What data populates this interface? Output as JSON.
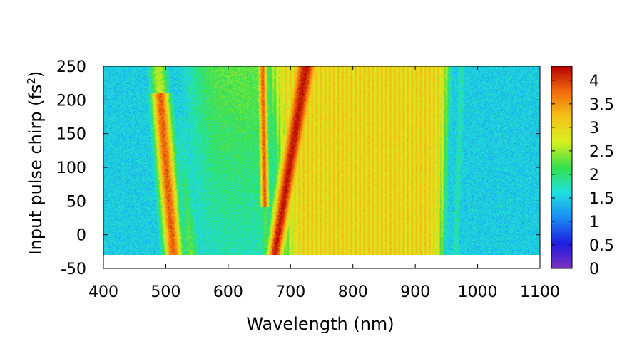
{
  "chart_data": {
    "type": "heatmap",
    "title": "",
    "xlabel": "Wavelength (nm)",
    "ylabel_main": "Input pulse chirp (fs",
    "ylabel_sup": "2",
    "ylabel_end": ")",
    "xlim": [
      400,
      1100
    ],
    "ylim": [
      -50,
      250
    ],
    "data_x_range": [
      400,
      1100
    ],
    "data_y_range": [
      -30,
      250
    ],
    "x_ticks": [
      "400",
      "500",
      "600",
      "700",
      "800",
      "900",
      "1000",
      "1100"
    ],
    "y_ticks": [
      "-50",
      "0",
      "50",
      "100",
      "150",
      "200",
      "250"
    ],
    "colorbar": {
      "range": [
        0,
        4.3
      ],
      "ticks": [
        "0",
        "0.5",
        "1",
        "1.5",
        "2",
        "2.5",
        "3",
        "3.5",
        "4"
      ],
      "palette": [
        "#7a2fbf",
        "#1d1ee0",
        "#1a8cf5",
        "#1ee0e0",
        "#36e04a",
        "#d6f01e",
        "#f5c219",
        "#f26b0c",
        "#b40000"
      ]
    },
    "grid": false,
    "legend": "colorbar-right",
    "features": [
      {
        "name": "background",
        "x_range": [
          400,
          1100
        ],
        "intensity": 1.0
      },
      {
        "name": "band-500nm",
        "x_at_low_chirp": 510,
        "x_at_high_chirp": 490,
        "peak_intensity": 3.8
      },
      {
        "name": "band-680nm",
        "x_at_low_chirp": 675,
        "x_at_high_chirp": 725,
        "peak_intensity": 4.2
      },
      {
        "name": "plateau",
        "x_range": [
          690,
          950
        ],
        "intensity": 3.0
      },
      {
        "name": "edge-970nm",
        "x": 975,
        "intensity": 1.7
      }
    ]
  }
}
